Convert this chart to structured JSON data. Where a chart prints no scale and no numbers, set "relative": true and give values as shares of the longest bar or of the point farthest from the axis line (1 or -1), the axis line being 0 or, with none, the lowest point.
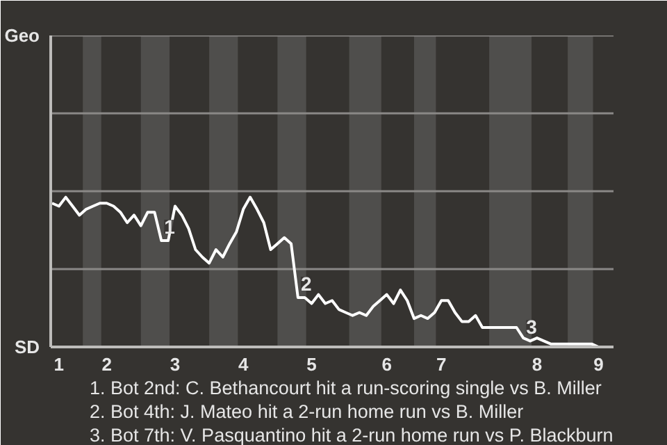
{
  "chart_data": {
    "type": "line",
    "categories": [
      null,
      "1",
      null,
      null,
      null,
      null,
      null,
      null,
      "2",
      null,
      null,
      null,
      null,
      null,
      null,
      null,
      null,
      null,
      "3",
      null,
      null,
      null,
      null,
      null,
      null,
      null,
      null,
      null,
      "4",
      null,
      null,
      null,
      null,
      null,
      null,
      null,
      null,
      null,
      "5",
      null,
      null,
      null,
      null,
      null,
      null,
      null,
      null,
      null,
      null,
      "6",
      null,
      null,
      null,
      null,
      null,
      null,
      null,
      "7",
      null,
      null,
      null,
      null,
      null,
      null,
      null,
      null,
      null,
      null,
      null,
      null,
      null,
      "8",
      null,
      null,
      null,
      null,
      null,
      null,
      null,
      null,
      "9",
      null,
      null
    ],
    "series": [
      {
        "color": "#ffffff",
        "values": [
          0.96,
          0.94,
          1,
          0.94,
          0.88,
          0.92,
          0.94,
          0.96,
          0.96,
          0.94,
          0.9,
          0.83,
          0.88,
          0.81,
          0.9,
          0.9,
          0.71,
          0.71,
          0.94,
          0.88,
          0.79,
          0.65,
          0.6,
          0.56,
          0.65,
          0.6,
          0.69,
          0.77,
          0.92,
          1,
          0.92,
          0.83,
          0.65,
          0.69,
          0.73,
          0.69,
          0.33,
          0.33,
          0.29,
          0.35,
          0.29,
          0.31,
          0.25,
          0.23,
          0.21,
          0.23,
          0.21,
          0.27,
          0.31,
          0.35,
          0.29,
          0.38,
          0.31,
          0.19,
          0.21,
          0.19,
          0.23,
          0.31,
          0.31,
          0.23,
          0.17,
          0.17,
          0.21,
          0.13,
          0.13,
          0.13,
          0.13,
          0.13,
          0.13,
          0.06,
          0.04,
          0.06,
          0.04,
          0.02,
          0.02,
          0.02,
          0.02,
          0.02,
          0.02,
          0.02,
          0,
          0,
          0
        ]
      }
    ],
    "relative": true,
    "ref_lines": [
      {
        "axis": "y",
        "value": 0.52,
        "color": "#8a8886"
      },
      {
        "axis": "y",
        "value": 1.04,
        "color": "#8a8886"
      },
      {
        "axis": "y",
        "value": 1.56,
        "color": "#8a8886"
      },
      {
        "axis": "y",
        "value": 2.08,
        "color": "#8a8886"
      }
    ],
    "annotations": [
      "Geo",
      "SD",
      {
        "text": "1",
        "x": "3",
        "y": 0.71
      },
      {
        "text": "2",
        "x": "5",
        "y": 0.33
      },
      {
        "text": "3",
        "x": "8",
        "y": 0.04
      },
      "1. Bot 2nd: C. Bethancourt hit a run-scoring single vs B. Miller",
      "2. Bot 4th: J. Mateo hit a 2-run home run vs B. Miller",
      "3. Bot 7th: V. Pasquantino hit a 2-run home run vs P. Blackburn"
    ]
  }
}
